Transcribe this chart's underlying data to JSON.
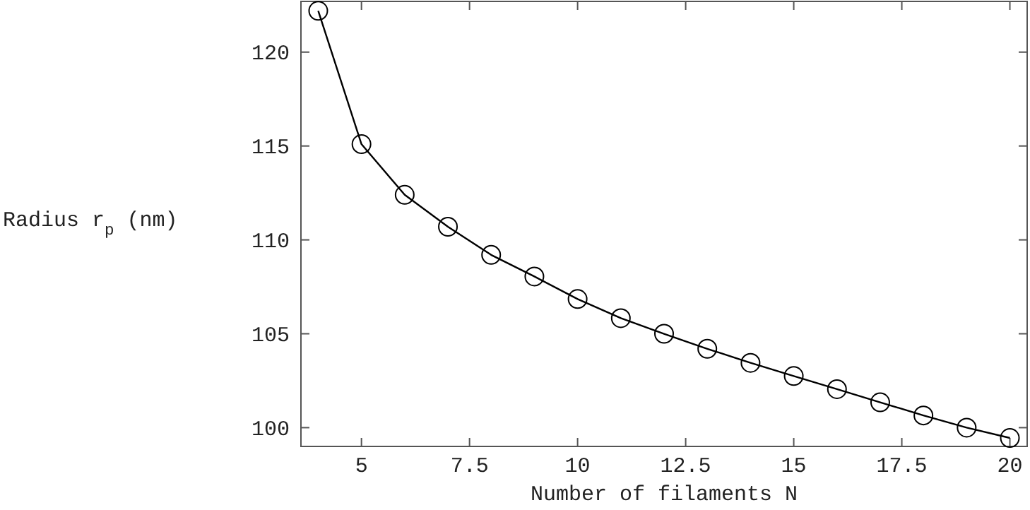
{
  "chart_data": {
    "type": "line",
    "xlabel": "Number of filaments N",
    "ylabel": "Radius r$_{p}$ (nm)",
    "x": [
      4,
      5,
      6,
      7,
      8,
      9,
      10,
      11,
      12,
      13,
      14,
      15,
      16,
      17,
      18,
      19,
      20
    ],
    "series": [
      {
        "color": "#000000",
        "values": [
          122.2,
          115.1,
          112.4,
          110.7,
          109.2,
          108.05,
          106.85,
          105.83,
          105.0,
          104.2,
          103.45,
          102.75,
          102.05,
          101.35,
          100.65,
          100.0,
          99.45
        ]
      }
    ],
    "xlim": [
      3.6,
      20.4
    ],
    "ylim": [
      99,
      122.7
    ],
    "xticks": [
      5,
      7.5,
      10,
      12.5,
      15,
      17.5,
      20
    ],
    "yticks": [
      100,
      105,
      110,
      115,
      120
    ],
    "marker": "circle",
    "line_style": "solid"
  }
}
